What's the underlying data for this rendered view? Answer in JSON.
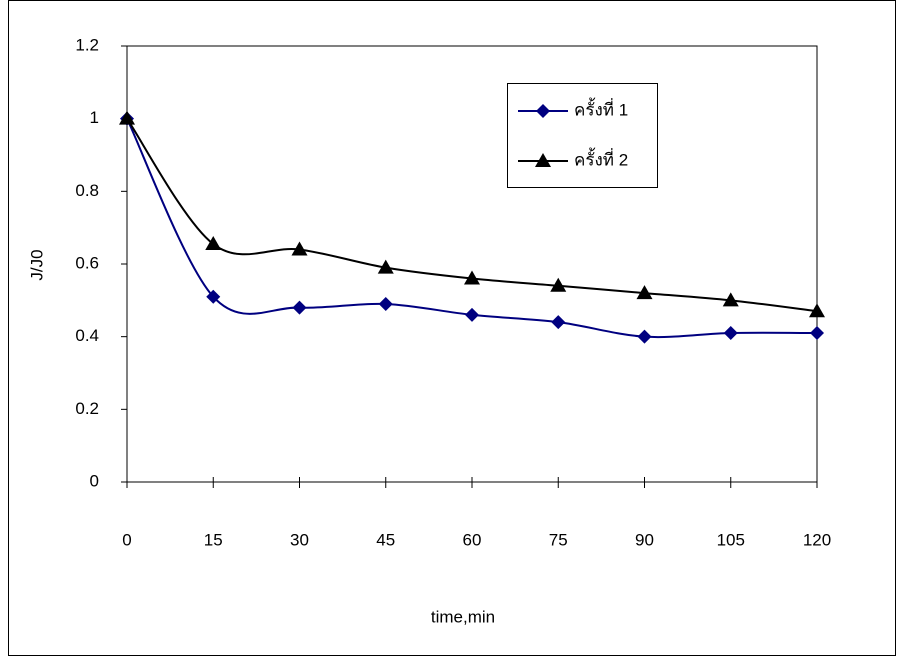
{
  "chart_data": {
    "type": "line",
    "x_label": "time,min",
    "y_label": "J/J0",
    "x": [
      0,
      15,
      30,
      45,
      60,
      75,
      90,
      105,
      120
    ],
    "series": [
      {
        "name": "ครั้งที่ 1",
        "color": "#000080",
        "marker": "diamond",
        "values": [
          1,
          0.51,
          0.48,
          0.49,
          0.46,
          0.44,
          0.4,
          0.41,
          0.41
        ]
      },
      {
        "name": "ครั้งที่ 2",
        "color": "#000000",
        "marker": "triangle",
        "values": [
          1,
          0.655,
          0.64,
          0.59,
          0.56,
          0.54,
          0.52,
          0.5,
          0.47
        ]
      }
    ],
    "xlim": [
      0,
      120
    ],
    "xticks": [
      0,
      15,
      30,
      45,
      60,
      75,
      90,
      105,
      120
    ],
    "ylim": [
      0,
      1.2
    ],
    "yticks": [
      0,
      0.2,
      0.4,
      0.6,
      0.8,
      1,
      1.2
    ],
    "grid": false,
    "smooth": true,
    "legend": "upper right"
  }
}
